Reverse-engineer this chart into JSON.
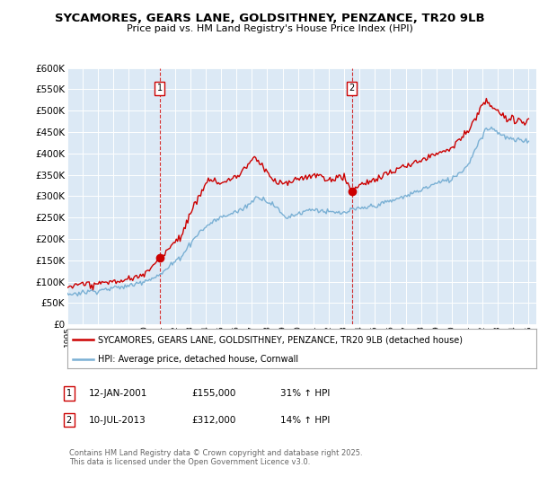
{
  "title": "SYCAMORES, GEARS LANE, GOLDSITHNEY, PENZANCE, TR20 9LB",
  "subtitle": "Price paid vs. HM Land Registry's House Price Index (HPI)",
  "background_color": "#ffffff",
  "plot_bg_color": "#dce9f5",
  "grid_color": "#ffffff",
  "red_line_color": "#cc0000",
  "blue_line_color": "#7ab0d4",
  "legend_line1": "SYCAMORES, GEARS LANE, GOLDSITHNEY, PENZANCE, TR20 9LB (detached house)",
  "legend_line2": "HPI: Average price, detached house, Cornwall",
  "footer": "Contains HM Land Registry data © Crown copyright and database right 2025.\nThis data is licensed under the Open Government Licence v3.0.",
  "ylim": [
    0,
    600000
  ],
  "yticks": [
    0,
    50000,
    100000,
    150000,
    200000,
    250000,
    300000,
    350000,
    400000,
    450000,
    500000,
    550000,
    600000
  ],
  "xstart_year": 1995,
  "xend_year": 2025,
  "marker1_year": 2001,
  "marker1_month": 1,
  "marker1_value": 155000,
  "marker2_year": 2013,
  "marker2_month": 7,
  "marker2_value": 312000,
  "hpi_key_points": [
    [
      1995,
      1,
      70000
    ],
    [
      1997,
      1,
      80000
    ],
    [
      1999,
      1,
      90000
    ],
    [
      2001,
      1,
      115000
    ],
    [
      2002,
      6,
      160000
    ],
    [
      2003,
      6,
      210000
    ],
    [
      2004,
      6,
      240000
    ],
    [
      2005,
      1,
      250000
    ],
    [
      2006,
      6,
      270000
    ],
    [
      2007,
      6,
      300000
    ],
    [
      2008,
      6,
      280000
    ],
    [
      2009,
      3,
      250000
    ],
    [
      2009,
      9,
      255000
    ],
    [
      2010,
      6,
      265000
    ],
    [
      2011,
      1,
      270000
    ],
    [
      2012,
      1,
      262000
    ],
    [
      2013,
      1,
      260000
    ],
    [
      2013,
      7,
      268000
    ],
    [
      2014,
      1,
      270000
    ],
    [
      2015,
      1,
      278000
    ],
    [
      2016,
      1,
      288000
    ],
    [
      2017,
      1,
      300000
    ],
    [
      2018,
      1,
      315000
    ],
    [
      2019,
      1,
      330000
    ],
    [
      2020,
      1,
      340000
    ],
    [
      2021,
      1,
      370000
    ],
    [
      2021,
      9,
      420000
    ],
    [
      2022,
      3,
      455000
    ],
    [
      2022,
      9,
      460000
    ],
    [
      2023,
      3,
      445000
    ],
    [
      2023,
      9,
      435000
    ],
    [
      2024,
      3,
      430000
    ],
    [
      2025,
      1,
      430000
    ]
  ],
  "prop_key_points": [
    [
      1995,
      1,
      90000
    ],
    [
      1996,
      1,
      92000
    ],
    [
      1997,
      1,
      95000
    ],
    [
      1998,
      1,
      100000
    ],
    [
      1999,
      1,
      105000
    ],
    [
      2000,
      1,
      115000
    ],
    [
      2001,
      1,
      155000
    ],
    [
      2002,
      6,
      210000
    ],
    [
      2003,
      6,
      290000
    ],
    [
      2004,
      3,
      340000
    ],
    [
      2005,
      1,
      330000
    ],
    [
      2006,
      1,
      345000
    ],
    [
      2007,
      3,
      390000
    ],
    [
      2007,
      9,
      370000
    ],
    [
      2008,
      3,
      345000
    ],
    [
      2008,
      9,
      330000
    ],
    [
      2009,
      3,
      330000
    ],
    [
      2009,
      9,
      335000
    ],
    [
      2010,
      6,
      345000
    ],
    [
      2011,
      1,
      350000
    ],
    [
      2012,
      1,
      340000
    ],
    [
      2013,
      1,
      345000
    ],
    [
      2013,
      7,
      312000
    ],
    [
      2014,
      1,
      325000
    ],
    [
      2015,
      1,
      340000
    ],
    [
      2016,
      1,
      355000
    ],
    [
      2017,
      1,
      370000
    ],
    [
      2018,
      1,
      385000
    ],
    [
      2019,
      1,
      400000
    ],
    [
      2020,
      1,
      415000
    ],
    [
      2021,
      1,
      450000
    ],
    [
      2021,
      9,
      490000
    ],
    [
      2022,
      3,
      520000
    ],
    [
      2022,
      9,
      510000
    ],
    [
      2023,
      3,
      490000
    ],
    [
      2023,
      9,
      480000
    ],
    [
      2024,
      3,
      475000
    ],
    [
      2025,
      1,
      478000
    ]
  ]
}
